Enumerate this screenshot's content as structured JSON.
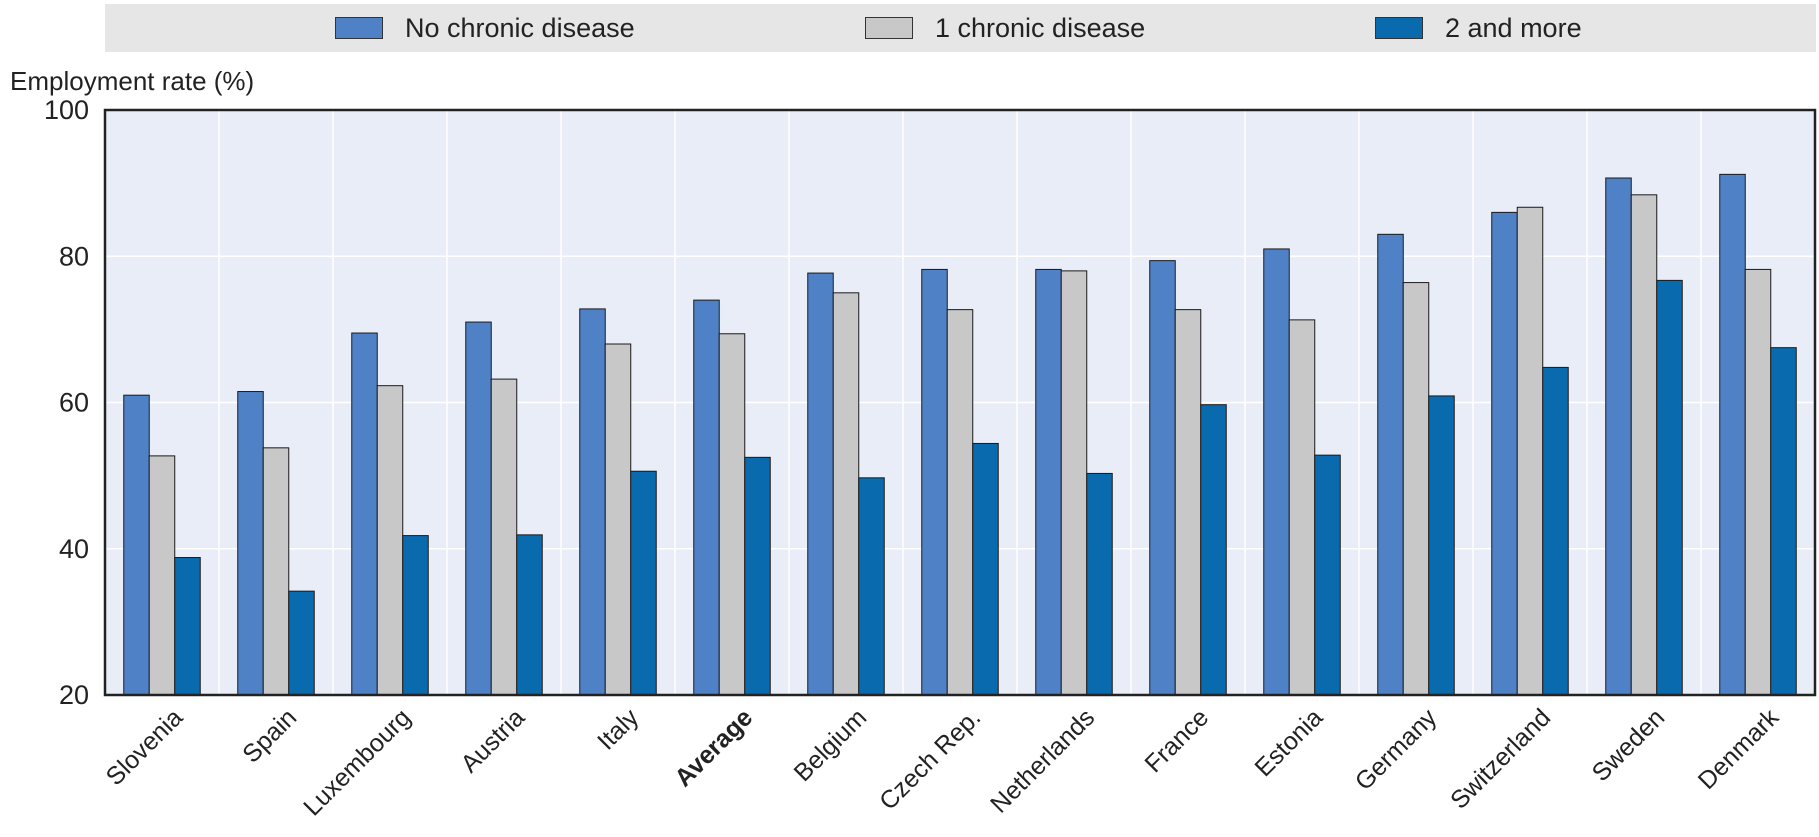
{
  "chart_data": {
    "type": "bar",
    "ylabel": "Employment rate (%)",
    "ylim": [
      20,
      100
    ],
    "yticks": [
      20,
      40,
      60,
      80,
      100
    ],
    "grid": true,
    "legend_position": "top",
    "categories": [
      "Slovenia",
      "Spain",
      "Luxembourg",
      "Austria",
      "Italy",
      "Average",
      "Belgium",
      "Czech Rep.",
      "Netherlands",
      "France",
      "Estonia",
      "Germany",
      "Switzerland",
      "Sweden",
      "Denmark"
    ],
    "highlight_category": "Average",
    "series": [
      {
        "name": "No chronic disease",
        "color": "#4f81c7",
        "values": [
          61,
          61.5,
          69.5,
          71,
          72.8,
          74,
          77.7,
          78.2,
          78.2,
          79.4,
          81,
          83,
          86,
          90.7,
          91.2
        ]
      },
      {
        "name": "1 chronic disease",
        "color": "#c8c8c8",
        "values": [
          52.7,
          53.8,
          62.3,
          63.2,
          68,
          69.4,
          75,
          72.7,
          78,
          72.7,
          71.3,
          76.4,
          86.7,
          88.4,
          78.2
        ]
      },
      {
        "name": "2 and more",
        "color": "#0a6aae",
        "values": [
          38.8,
          34.2,
          41.8,
          41.9,
          50.6,
          52.5,
          49.7,
          54.4,
          50.3,
          59.7,
          52.8,
          60.9,
          64.8,
          76.7,
          67.5
        ]
      }
    ],
    "colors": {
      "plot_background": "#e8edf7",
      "legend_background": "#e6e6e6",
      "axis": "#222222",
      "gridline": "#ffffff"
    }
  }
}
